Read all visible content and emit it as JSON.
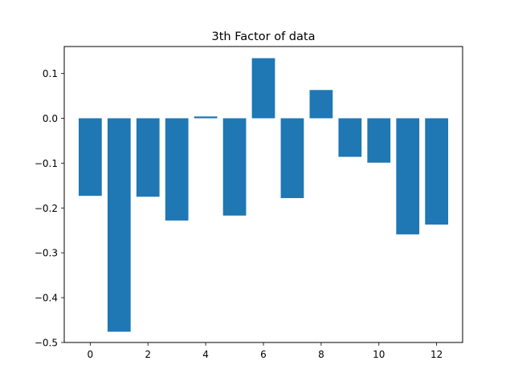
{
  "chart_data": {
    "type": "bar",
    "title": "3th Factor of data",
    "xlabel": "",
    "ylabel": "",
    "categories": [
      0,
      1,
      2,
      3,
      4,
      5,
      6,
      7,
      8,
      9,
      10,
      11,
      12
    ],
    "values": [
      -0.173,
      -0.476,
      -0.175,
      -0.228,
      0.004,
      -0.217,
      0.134,
      -0.178,
      0.063,
      -0.086,
      -0.099,
      -0.259,
      -0.237
    ],
    "xlim": [
      -0.9,
      12.9
    ],
    "ylim": [
      -0.5,
      0.16
    ],
    "xticks": [
      0,
      2,
      4,
      6,
      8,
      10,
      12
    ],
    "xtick_labels": [
      "0",
      "2",
      "4",
      "6",
      "8",
      "10",
      "12"
    ],
    "yticks": [
      -0.5,
      -0.4,
      -0.3,
      -0.2,
      -0.1,
      0.0,
      0.1
    ],
    "ytick_labels": [
      "−0.5",
      "−0.4",
      "−0.3",
      "−0.2",
      "−0.1",
      "0.0",
      "0.1"
    ],
    "bar_width": 0.8,
    "bar_color": "#1f77b4",
    "grid": false,
    "legend": "none"
  }
}
